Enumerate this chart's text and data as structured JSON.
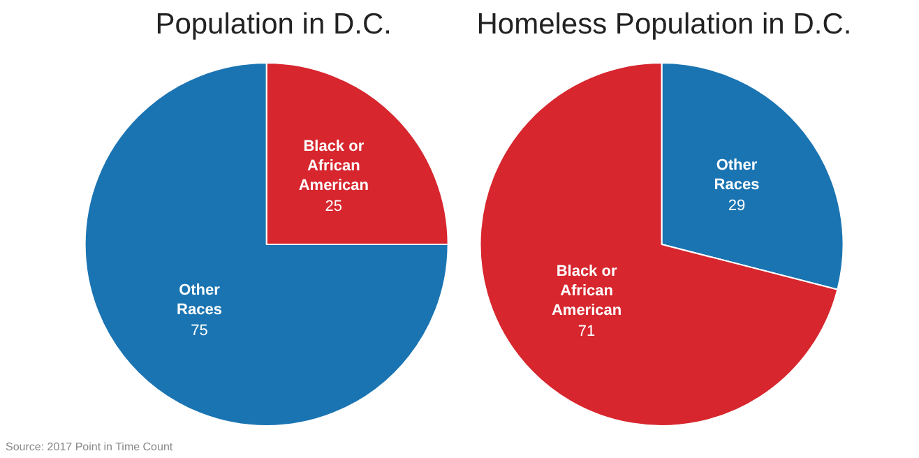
{
  "chart_data": [
    {
      "type": "pie",
      "title": "Population in D.C.",
      "categories": [
        "Black or African American",
        "Other Races"
      ],
      "values": [
        25,
        75
      ],
      "colors": [
        "#d7262e",
        "#1a74b2"
      ],
      "data_labels": true,
      "annotations": [
        "Source: 2017 Point in Time Count"
      ]
    },
    {
      "type": "pie",
      "title": "Homeless Population in D.C.",
      "categories": [
        "Other Races",
        "Black or African American"
      ],
      "values": [
        29,
        71
      ],
      "colors": [
        "#1a74b2",
        "#d7262e"
      ],
      "data_labels": true
    }
  ]
}
